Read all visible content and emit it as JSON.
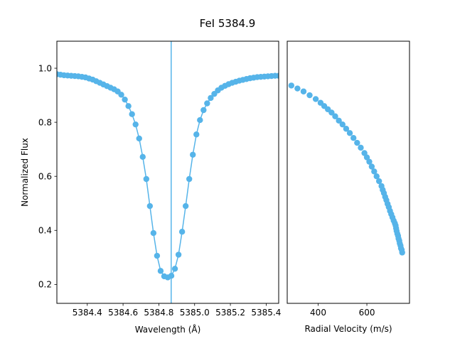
{
  "figure": {
    "title": "FeI 5384.9"
  },
  "colors": {
    "series": "#56b4e9",
    "axis": "#000000",
    "background": "#ffffff"
  },
  "chart_data": [
    {
      "type": "line",
      "xlabel": "Wavelength (Å)",
      "ylabel": "Normalized Flux",
      "xlim": [
        5384.23,
        5385.47
      ],
      "ylim": [
        0.13,
        1.1
      ],
      "xticks": [
        5384.4,
        5384.6,
        5384.8,
        5385.0,
        5385.2,
        5385.4
      ],
      "xtick_labels": [
        "5384.4",
        "5384.6",
        "5384.8",
        "5385.0",
        "5385.2",
        "5385.4"
      ],
      "yticks": [
        0.2,
        0.4,
        0.6,
        0.8,
        1.0
      ],
      "ytick_labels": [
        "0.2",
        "0.4",
        "0.6",
        "0.8",
        "1.0"
      ],
      "vline_x": 5384.869,
      "grid": false,
      "series": [
        {
          "x": [
            5384.23,
            5384.25,
            5384.27,
            5384.29,
            5384.31,
            5384.33,
            5384.35,
            5384.37,
            5384.39,
            5384.41,
            5384.43,
            5384.45,
            5384.47,
            5384.49,
            5384.51,
            5384.53,
            5384.55,
            5384.57,
            5384.59,
            5384.61,
            5384.63,
            5384.65,
            5384.67,
            5384.69,
            5384.71,
            5384.73,
            5384.75,
            5384.77,
            5384.79,
            5384.81,
            5384.83,
            5384.85,
            5384.87,
            5384.89,
            5384.91,
            5384.93,
            5384.95,
            5384.97,
            5384.99,
            5385.01,
            5385.03,
            5385.05,
            5385.07,
            5385.09,
            5385.11,
            5385.13,
            5385.15,
            5385.17,
            5385.19,
            5385.21,
            5385.23,
            5385.25,
            5385.27,
            5385.29,
            5385.31,
            5385.33,
            5385.35,
            5385.37,
            5385.39,
            5385.41,
            5385.43,
            5385.45,
            5385.47
          ],
          "y": [
            0.978,
            0.976,
            0.974,
            0.973,
            0.972,
            0.971,
            0.97,
            0.968,
            0.966,
            0.962,
            0.958,
            0.952,
            0.946,
            0.94,
            0.934,
            0.928,
            0.922,
            0.914,
            0.902,
            0.884,
            0.86,
            0.83,
            0.792,
            0.74,
            0.672,
            0.59,
            0.49,
            0.39,
            0.306,
            0.25,
            0.23,
            0.226,
            0.232,
            0.258,
            0.31,
            0.395,
            0.49,
            0.59,
            0.68,
            0.755,
            0.808,
            0.845,
            0.87,
            0.89,
            0.905,
            0.918,
            0.928,
            0.935,
            0.941,
            0.946,
            0.95,
            0.954,
            0.957,
            0.96,
            0.963,
            0.965,
            0.967,
            0.968,
            0.969,
            0.97,
            0.971,
            0.972,
            0.972
          ]
        }
      ]
    },
    {
      "type": "scatter",
      "xlabel": "Radial Velocity (m/s)",
      "ylabel": "",
      "xlim": [
        273,
        775
      ],
      "ylim": [
        0.13,
        1.1
      ],
      "xticks": [
        400,
        600
      ],
      "xtick_labels": [
        "400",
        "600"
      ],
      "grid": false,
      "series": [
        {
          "x": [
            290,
            315,
            340,
            365,
            390,
            410,
            425,
            440,
            455,
            470,
            485,
            500,
            515,
            530,
            545,
            560,
            575,
            590,
            600,
            610,
            620,
            630,
            640,
            650,
            660,
            665,
            670,
            675,
            680,
            685,
            690,
            695,
            700,
            705,
            710,
            715,
            718,
            720,
            722,
            725,
            728,
            730,
            733,
            735,
            738,
            740,
            743,
            745
          ],
          "y": [
            0.936,
            0.925,
            0.914,
            0.9,
            0.886,
            0.872,
            0.86,
            0.848,
            0.836,
            0.822,
            0.806,
            0.792,
            0.776,
            0.76,
            0.742,
            0.724,
            0.706,
            0.686,
            0.67,
            0.654,
            0.636,
            0.618,
            0.6,
            0.582,
            0.564,
            0.55,
            0.538,
            0.524,
            0.512,
            0.498,
            0.486,
            0.472,
            0.46,
            0.448,
            0.436,
            0.426,
            0.418,
            0.408,
            0.398,
            0.388,
            0.38,
            0.37,
            0.362,
            0.352,
            0.344,
            0.334,
            0.328,
            0.318
          ]
        }
      ]
    }
  ]
}
